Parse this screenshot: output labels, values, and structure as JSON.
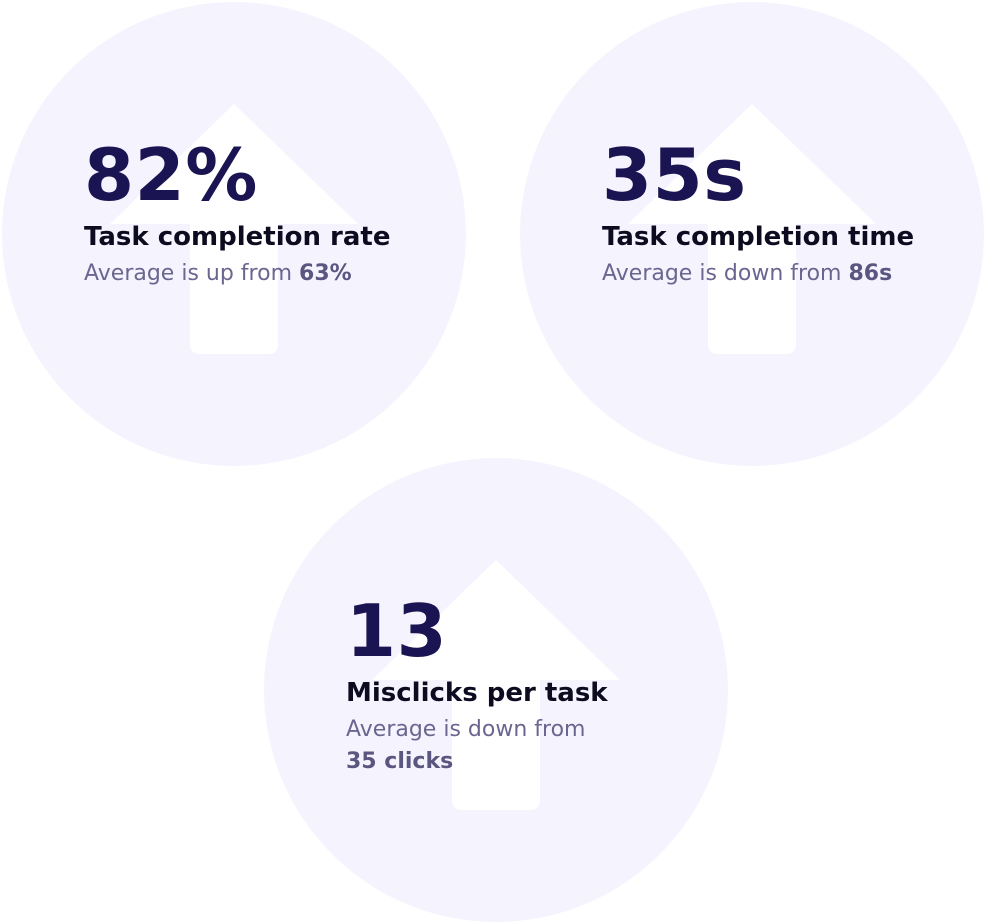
{
  "stats": [
    {
      "value": "82%",
      "label": "Task completion rate",
      "sub_prefix": "Average is up from",
      "sub_value": "63%",
      "icon": "arrow-up-icon"
    },
    {
      "value": "35s",
      "label": "Task completion time",
      "sub_prefix": "Average is down from",
      "sub_value": "86s",
      "icon": "arrow-up-icon"
    },
    {
      "value": "13",
      "label": "Misclicks per task",
      "sub_prefix": "Average is down from",
      "sub_value": "35 clicks",
      "icon": "arrow-up-icon"
    }
  ],
  "colors": {
    "circle": "#f5f4fe",
    "value": "#1b1452",
    "label": "#0d0b1f",
    "sub": "#6a6690"
  }
}
